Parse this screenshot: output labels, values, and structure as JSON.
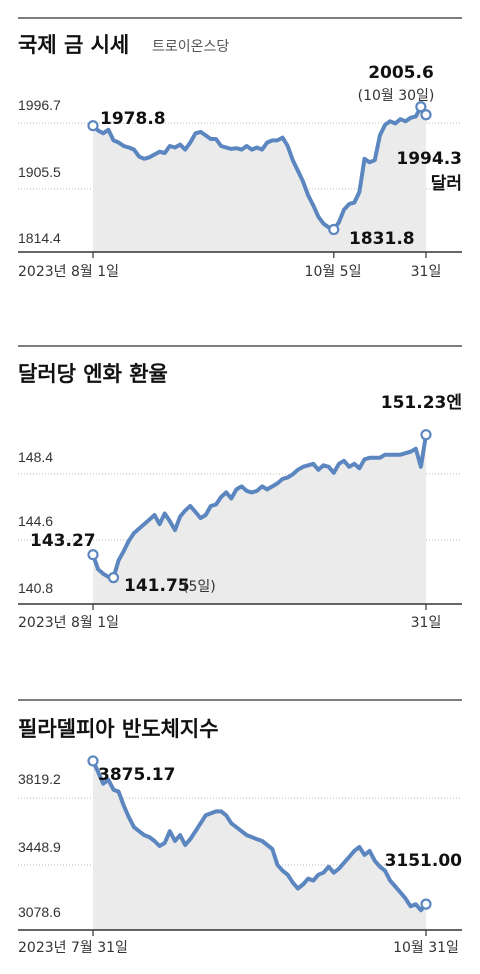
{
  "chart_data": [
    {
      "type": "area",
      "title": "국제 금 시세",
      "subtitle": "트로이온스당",
      "yticks": [
        "1996.7",
        "1905.5",
        "1814.4"
      ],
      "ylim": [
        1800,
        2035
      ],
      "xticks": [
        "2023년 8월 1일",
        "10월 5일",
        "31일"
      ],
      "x": [
        "8/1",
        "8/2",
        "8/3",
        "8/4",
        "8/7",
        "8/8",
        "8/9",
        "8/10",
        "8/11",
        "8/14",
        "8/15",
        "8/16",
        "8/17",
        "8/18",
        "8/21",
        "8/22",
        "8/23",
        "8/24",
        "8/25",
        "8/28",
        "8/29",
        "8/30",
        "8/31",
        "9/1",
        "9/4",
        "9/5",
        "9/6",
        "9/7",
        "9/8",
        "9/11",
        "9/12",
        "9/13",
        "9/14",
        "9/15",
        "9/18",
        "9/19",
        "9/20",
        "9/21",
        "9/22",
        "9/25",
        "9/26",
        "9/27",
        "9/28",
        "9/29",
        "10/2",
        "10/3",
        "10/4",
        "10/5",
        "10/6",
        "10/9",
        "10/10",
        "10/11",
        "10/12",
        "10/13",
        "10/16",
        "10/17",
        "10/18",
        "10/19",
        "10/20",
        "10/23",
        "10/24",
        "10/25",
        "10/26",
        "10/27",
        "10/30",
        "10/31"
      ],
      "values": [
        1978.8,
        1972,
        1968,
        1973,
        1958,
        1955,
        1950,
        1948,
        1945,
        1935,
        1932,
        1934,
        1938,
        1942,
        1940,
        1950,
        1948,
        1952,
        1945,
        1955,
        1968,
        1970,
        1965,
        1960,
        1960,
        1950,
        1948,
        1946,
        1947,
        1945,
        1950,
        1945,
        1948,
        1945,
        1955,
        1958,
        1958,
        1962,
        1950,
        1930,
        1915,
        1900,
        1880,
        1866,
        1850,
        1840,
        1835,
        1831.8,
        1842,
        1860,
        1868,
        1870,
        1885,
        1932,
        1927,
        1930,
        1965,
        1980,
        1985,
        1982,
        1988,
        1985,
        1990,
        1992,
        2005.6,
        1994.3
      ],
      "annotations": [
        {
          "label": "1978.8",
          "value": 1978.8
        },
        {
          "label": "2005.6",
          "note": "(10월 30일)",
          "value": 2005.6
        },
        {
          "label": "1994.3",
          "note": "달러",
          "value": 1994.3
        },
        {
          "label": "1831.8",
          "value": 1831.8
        }
      ]
    },
    {
      "type": "area",
      "title": "달러당 엔화 환율",
      "yticks": [
        "148.4",
        "144.6",
        "140.8"
      ],
      "ylim": [
        140.0,
        153.0
      ],
      "xticks": [
        "2023년 8월 1일",
        "31일"
      ],
      "x": [
        "8/1",
        "8/2",
        "8/3",
        "8/4",
        "8/7",
        "8/8",
        "8/9",
        "8/10",
        "8/11",
        "8/14",
        "8/15",
        "8/16",
        "8/17",
        "8/18",
        "8/21",
        "8/22",
        "8/23",
        "8/24",
        "8/25",
        "8/28",
        "8/29",
        "8/30",
        "8/31",
        "9/1",
        "9/4",
        "9/5",
        "9/6",
        "9/7",
        "9/8",
        "9/11",
        "9/12",
        "9/13",
        "9/14",
        "9/15",
        "9/18",
        "9/19",
        "9/20",
        "9/21",
        "9/22",
        "9/25",
        "9/26",
        "9/27",
        "9/28",
        "9/29",
        "10/2",
        "10/3",
        "10/4",
        "10/5",
        "10/6",
        "10/9",
        "10/10",
        "10/11",
        "10/12",
        "10/13",
        "10/16",
        "10/17",
        "10/18",
        "10/19",
        "10/20",
        "10/23",
        "10/24",
        "10/25",
        "10/26",
        "10/27",
        "10/30",
        "10/31"
      ],
      "values": [
        143.27,
        142.3,
        142.0,
        141.8,
        141.75,
        142.9,
        143.5,
        144.2,
        144.7,
        145.0,
        145.3,
        145.6,
        145.9,
        145.3,
        146.0,
        145.5,
        144.9,
        145.8,
        146.2,
        146.5,
        146.1,
        145.7,
        145.9,
        146.5,
        146.6,
        147.1,
        147.4,
        147.0,
        147.6,
        147.8,
        147.5,
        147.4,
        147.5,
        147.8,
        147.6,
        147.8,
        148.0,
        148.3,
        148.4,
        148.6,
        148.9,
        149.1,
        149.2,
        149.3,
        148.9,
        149.2,
        149.1,
        148.7,
        149.3,
        149.5,
        149.1,
        149.3,
        149.0,
        149.6,
        149.7,
        149.7,
        149.7,
        149.9,
        149.9,
        149.9,
        149.9,
        150.0,
        150.1,
        150.3,
        149.1,
        151.23
      ],
      "annotations": [
        {
          "label": "151.23엔",
          "value": 151.23
        },
        {
          "label": "143.27",
          "value": 143.27
        },
        {
          "label": "141.75",
          "note": "(5일)",
          "value": 141.75
        }
      ]
    },
    {
      "type": "area",
      "title": "필라델피아 반도체지수",
      "yticks": [
        "3819.2",
        "3448.9",
        "3078.6"
      ],
      "ylim": [
        3020,
        3880
      ],
      "xticks": [
        "2023년 7월 31일",
        "10월 31일"
      ],
      "x": [
        "7/31",
        "8/1",
        "8/2",
        "8/3",
        "8/4",
        "8/7",
        "8/8",
        "8/9",
        "8/10",
        "8/11",
        "8/14",
        "8/15",
        "8/16",
        "8/17",
        "8/18",
        "8/21",
        "8/22",
        "8/23",
        "8/24",
        "8/25",
        "8/28",
        "8/29",
        "8/30",
        "8/31",
        "9/1",
        "9/5",
        "9/6",
        "9/7",
        "9/8",
        "9/11",
        "9/12",
        "9/13",
        "9/14",
        "9/15",
        "9/18",
        "9/19",
        "9/20",
        "9/21",
        "9/22",
        "9/25",
        "9/26",
        "9/27",
        "9/28",
        "9/29",
        "10/2",
        "10/3",
        "10/4",
        "10/5",
        "10/6",
        "10/9",
        "10/10",
        "10/11",
        "10/12",
        "10/13",
        "10/16",
        "10/17",
        "10/18",
        "10/19",
        "10/20",
        "10/23",
        "10/24",
        "10/25",
        "10/26",
        "10/27",
        "10/30",
        "10/31"
      ],
      "values": [
        3875.17,
        3820,
        3760,
        3780,
        3730,
        3720,
        3650,
        3590,
        3540,
        3520,
        3500,
        3490,
        3470,
        3445,
        3460,
        3520,
        3470,
        3500,
        3450,
        3480,
        3520,
        3560,
        3600,
        3610,
        3620,
        3620,
        3600,
        3560,
        3540,
        3520,
        3500,
        3490,
        3480,
        3470,
        3450,
        3430,
        3350,
        3320,
        3300,
        3260,
        3230,
        3250,
        3280,
        3270,
        3300,
        3310,
        3340,
        3310,
        3330,
        3360,
        3390,
        3420,
        3440,
        3400,
        3420,
        3370,
        3340,
        3320,
        3270,
        3240,
        3210,
        3180,
        3140,
        3150,
        3120,
        3151.0
      ],
      "annotations": [
        {
          "label": "3875.17",
          "value": 3875.17
        },
        {
          "label": "3151.00",
          "value": 3151.0
        }
      ]
    }
  ],
  "colors": {
    "line": "#5b86bf",
    "fill": "#ebebeb",
    "grid": "#b8b8b8",
    "rule": "#333333",
    "text": "#111111"
  }
}
